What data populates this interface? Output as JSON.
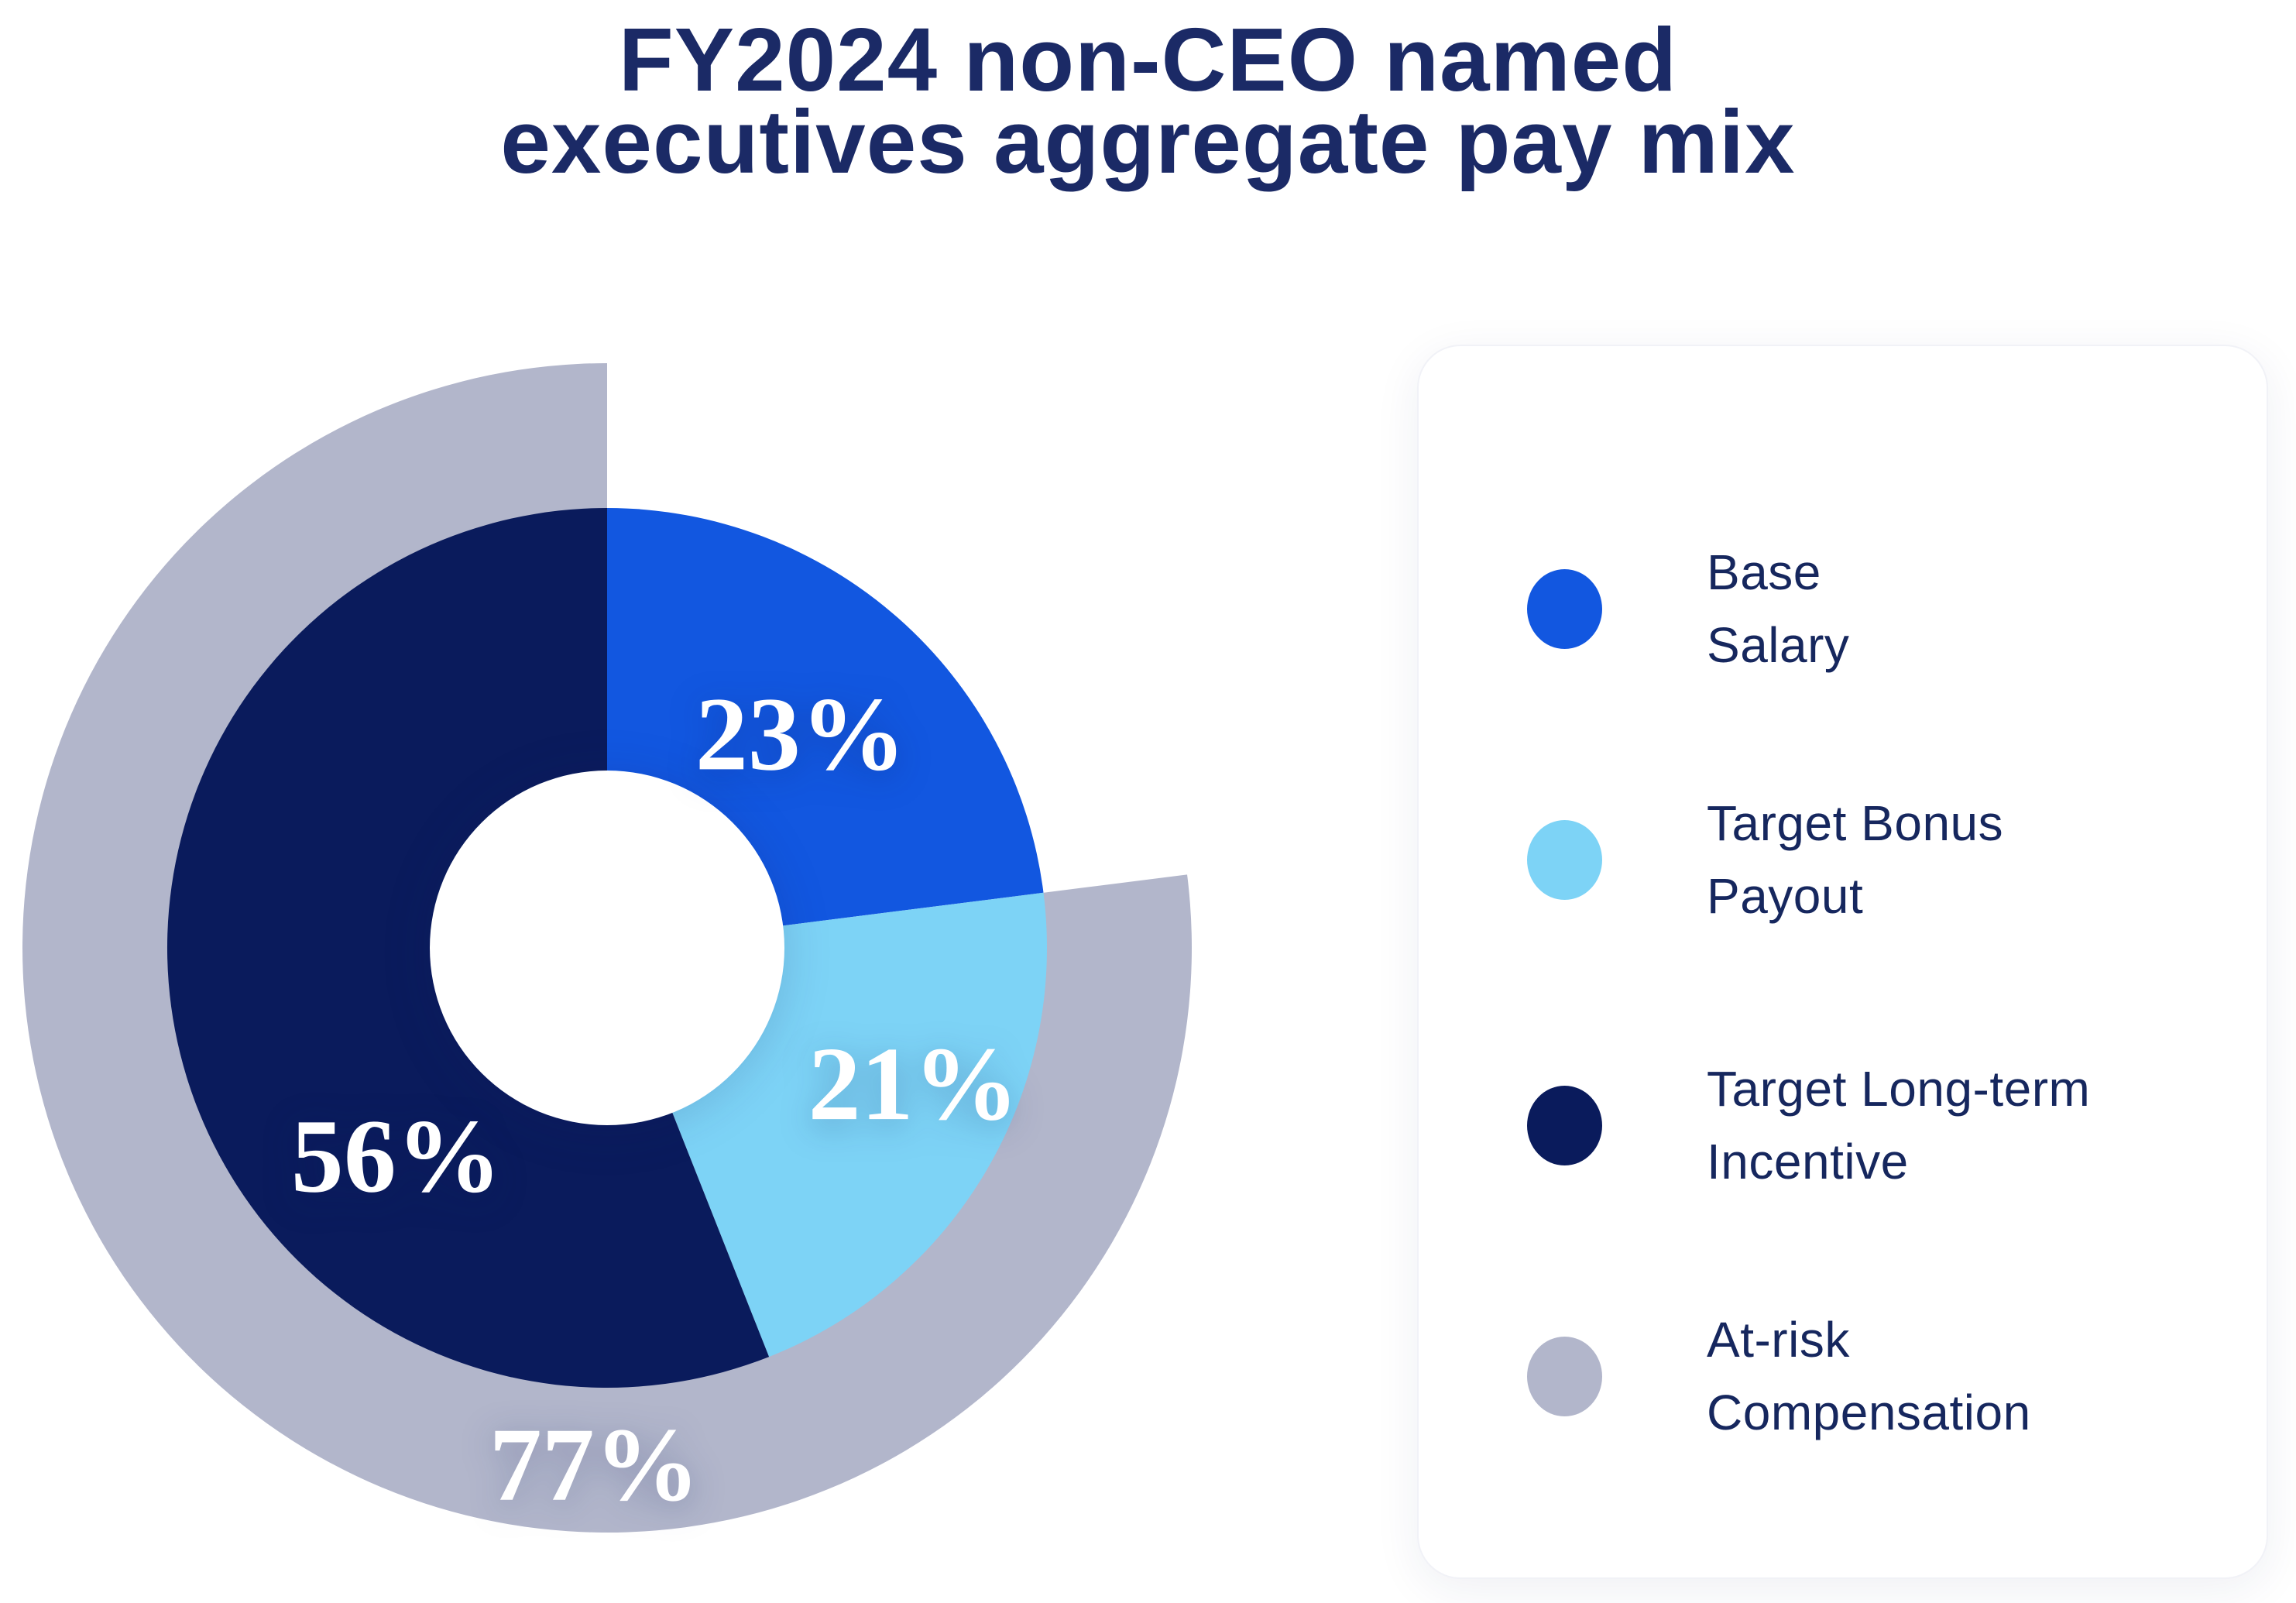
{
  "title": {
    "line1": "FY2024 non-CEO named",
    "line2": "executives aggregate pay mix"
  },
  "chart_data": {
    "type": "pie",
    "variant": "donut-with-outer-ring",
    "title": "FY2024 non-CEO named executives aggregate pay mix",
    "unit": "%",
    "segments": [
      {
        "label": "Base Salary",
        "value": 23,
        "label_text": "23%",
        "color": "#1257e0"
      },
      {
        "label": "Target Bonus Payout",
        "value": 21,
        "label_text": "21%",
        "color": "#7dd3f6"
      },
      {
        "label": "Target Long-term Incentive",
        "value": 56,
        "label_text": "56%",
        "color": "#0a1b5c"
      }
    ],
    "outer_ring": {
      "label": "At-risk Compensation",
      "value": 77,
      "label_text": "77%",
      "color": "#b2b6cb"
    },
    "legend_position": "right",
    "data_label_color": "#ffffff"
  },
  "legend": {
    "items": [
      {
        "line1": "Base",
        "line2": "Salary",
        "color": "#1257e0"
      },
      {
        "line1": "Target Bonus",
        "line2": "Payout",
        "color": "#7dd3f6"
      },
      {
        "line1": "Target Long-term",
        "line2": "Incentive",
        "color": "#0a1b5c"
      },
      {
        "line1": "At-risk",
        "line2": "Compensation",
        "color": "#b2b6cb"
      }
    ]
  },
  "colors": {
    "title_text": "#1b2a66",
    "legend_text": "#16275e",
    "background": "#ffffff"
  }
}
